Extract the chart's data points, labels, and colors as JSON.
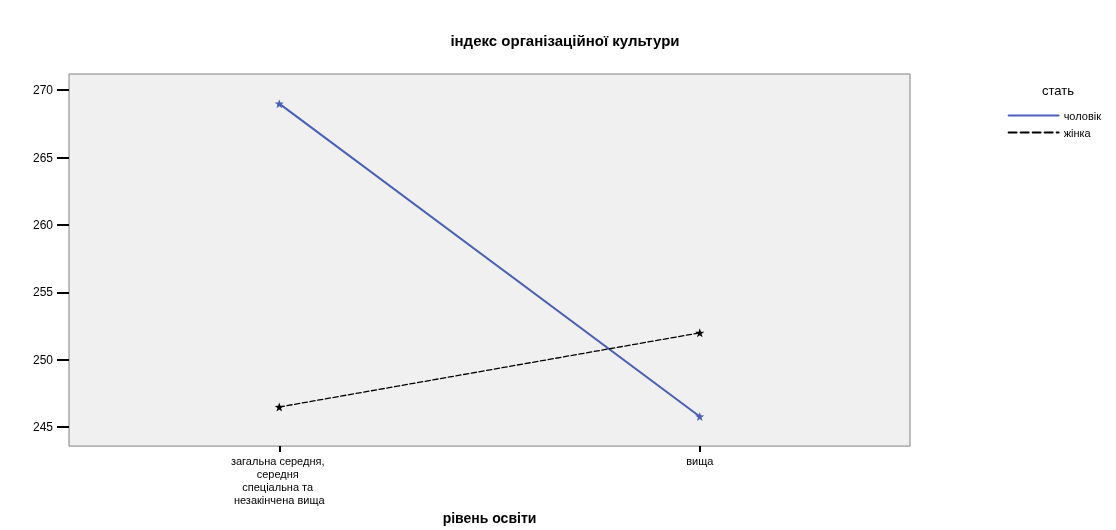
{
  "chart_data": {
    "type": "line",
    "title": "індекс організаційної культури",
    "xlabel": "рівень освіти",
    "legend_title": "стать",
    "categories": [
      "загальна середня, середня спеціальна та незакінчена вища",
      "вища"
    ],
    "series": [
      {
        "name": "чоловік",
        "color": "#4a5fb5",
        "values": [
          269.0,
          245.8
        ],
        "line_style": "solid"
      },
      {
        "name": "жінка",
        "color": "#000000",
        "values": [
          246.5,
          252.0
        ],
        "line_style": "dashed"
      }
    ],
    "ylim": [
      243.6,
      271.2
    ],
    "yticks": [
      245,
      250,
      255,
      260,
      265,
      270
    ],
    "grid": false,
    "legend": "top right",
    "marker": "star"
  }
}
